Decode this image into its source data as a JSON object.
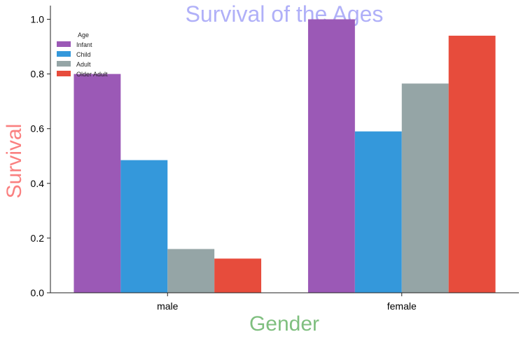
{
  "chart_data": {
    "type": "bar",
    "title": "Survival of the Ages",
    "xlabel": "Gender",
    "ylabel": "Survival",
    "categories": [
      "male",
      "female"
    ],
    "series": [
      {
        "name": "Infant",
        "values": [
          0.8,
          1.0
        ],
        "color": "#9b59b6"
      },
      {
        "name": "Child",
        "values": [
          0.485,
          0.59
        ],
        "color": "#3498db"
      },
      {
        "name": "Adult",
        "values": [
          0.16,
          0.765
        ],
        "color": "#95a5a6"
      },
      {
        "name": "Older Adult",
        "values": [
          0.125,
          0.94
        ],
        "color": "#e74c3c"
      }
    ],
    "ylim": [
      0,
      1.05
    ],
    "yticks": [
      "0.0",
      "0.2",
      "0.4",
      "0.6",
      "0.8",
      "1.0"
    ],
    "legend": {
      "title": "Age",
      "placement": "top-left"
    },
    "grid": false,
    "colors": {
      "title": "#b0b0f8",
      "xlabel": "#7fbf7f",
      "ylabel": "#fa8080"
    }
  }
}
